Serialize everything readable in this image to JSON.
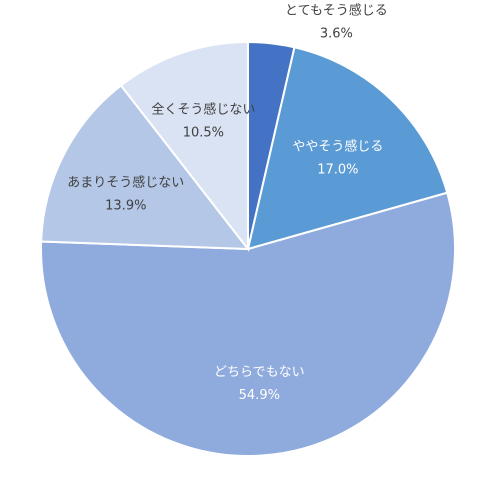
{
  "chart_data": {
    "type": "pie",
    "title": "",
    "slices": [
      {
        "label": "とてもそう感じる",
        "value": 3.6,
        "value_text": "3.6%",
        "color": "#4472c4"
      },
      {
        "label": "ややそう感じる",
        "value": 17.0,
        "value_text": "17.0%",
        "color": "#5b9bd5"
      },
      {
        "label": "どちらでもない",
        "value": 54.9,
        "value_text": "54.9%",
        "color": "#8faadc"
      },
      {
        "label": "あまりそう感じない",
        "value": 13.9,
        "value_text": "13.9%",
        "color": "#b4c7e7"
      },
      {
        "label": "全くそう感じない",
        "value": 10.5,
        "value_text": "10.5%",
        "color": "#dae3f3"
      }
    ],
    "start": "12 o'clock",
    "direction": "clockwise",
    "legend": "none",
    "label_color_inside": "#ffffff",
    "label_color_outside": "#404040"
  }
}
